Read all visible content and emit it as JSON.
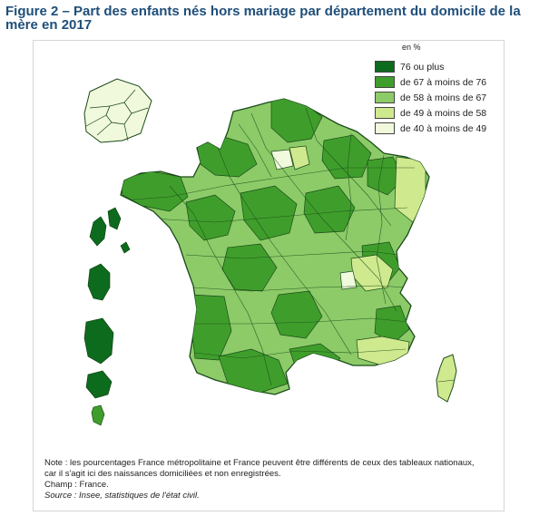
{
  "title": "Figure 2 – Part des enfants nés hors mariage par département du domicile de la mère en 2017",
  "legend": {
    "unit": "en %",
    "classes": [
      {
        "label": "76 ou plus",
        "color": "#0d6b1e"
      },
      {
        "label": "de 67 à moins de 76",
        "color": "#3f9e2b"
      },
      {
        "label": "de 58 à moins de 67",
        "color": "#8ccb68"
      },
      {
        "label": "de 49 à moins de 58",
        "color": "#cfe98e"
      },
      {
        "label": "de 40 à moins de 49",
        "color": "#f1f9dc"
      }
    ]
  },
  "notes": {
    "line1": "Note : les pourcentages France métropolitaine et France peuvent être différents de ceux des tableaux nationaux,",
    "line2": "car il s'agit ici des naissances domiciliées et non enregistrées.",
    "scope": "Champ : France.",
    "source": "Source : Insee, statistiques de l'état civil."
  }
}
